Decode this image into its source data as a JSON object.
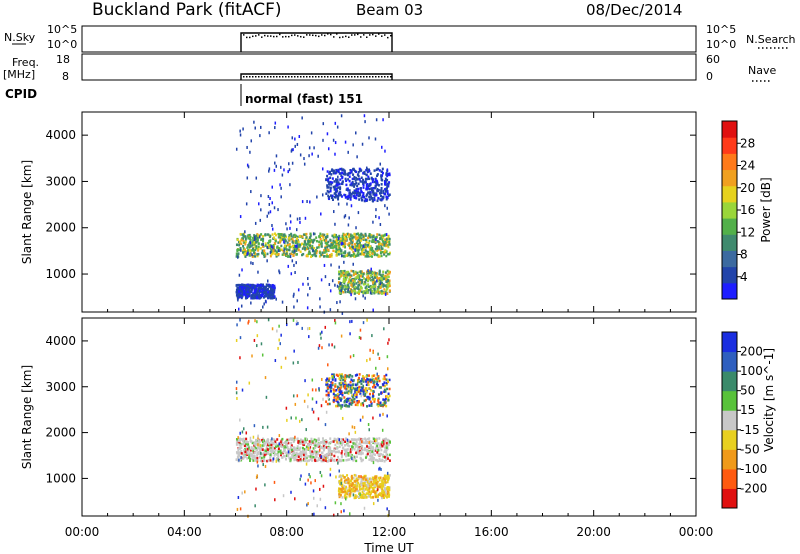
{
  "header": {
    "station": "Buckland Park (fitACF)",
    "beam": "Beam 03",
    "date": "08/Dec/2014"
  },
  "noise_panel": {
    "left_label": "N.Sky",
    "right_label": "N.Search",
    "ticks_left": [
      "10^5",
      "10^0"
    ],
    "ticks_right": [
      "10^5",
      "10^0"
    ]
  },
  "freq_panel": {
    "left_label": "Freq.",
    "left_unit": "[MHz]",
    "ticks_left": [
      "18",
      "8"
    ],
    "right_label": "Nave",
    "ticks_right": [
      "60",
      "0"
    ]
  },
  "cpid": {
    "label": "CPID",
    "mode": "normal (fast) 151"
  },
  "colors": {
    "power": [
      "#1e1eff",
      "#2244aa",
      "#3c6aa0",
      "#3f8a6e",
      "#52b04a",
      "#9ad63a",
      "#e6d21e",
      "#f0a020",
      "#ff7a1a",
      "#ff3a1a",
      "#e01010"
    ],
    "velocity": [
      "#1a2ee0",
      "#2f5fbf",
      "#3a8a6a",
      "#58c23a",
      "#c8c8c8",
      "#e8d020",
      "#f09a1a",
      "#ff5a10",
      "#e01010"
    ]
  },
  "chart_data": [
    {
      "type": "heatmap",
      "title": "Power",
      "xlabel": "",
      "ylabel": "Slant Range [km]",
      "ylim": [
        180,
        4500
      ],
      "yticks": [
        "1000",
        "2000",
        "3000",
        "4000"
      ],
      "colorbar": {
        "label": "Power [dB]",
        "ticks": [
          "4",
          "8",
          "12",
          "16",
          "20",
          "24",
          "28"
        ],
        "range": [
          0,
          32
        ]
      },
      "echo_regions": [
        {
          "t_start": "06:00",
          "t_end": "12:00",
          "range_km": [
            1400,
            1900
          ],
          "power_db": [
            8,
            24
          ]
        },
        {
          "t_start": "09:30",
          "t_end": "12:00",
          "range_km": [
            2600,
            3300
          ],
          "power_db": [
            4,
            12
          ]
        },
        {
          "t_start": "10:00",
          "t_end": "12:00",
          "range_km": [
            600,
            1100
          ],
          "power_db": [
            6,
            20
          ]
        },
        {
          "t_start": "06:00",
          "t_end": "07:30",
          "range_km": [
            500,
            800
          ],
          "power_db": [
            4,
            10
          ]
        }
      ]
    },
    {
      "type": "heatmap",
      "title": "Velocity",
      "xlabel": "Time UT",
      "ylabel": "Slant Range [km]",
      "ylim": [
        180,
        4500
      ],
      "yticks": [
        "1000",
        "2000",
        "3000",
        "4000"
      ],
      "xticks": [
        "00:00",
        "04:00",
        "08:00",
        "12:00",
        "16:00",
        "20:00",
        "00:00"
      ],
      "colorbar": {
        "label": "Velocity [m s^-1]",
        "ticks": [
          "200",
          "100",
          "50",
          "15",
          "-15",
          "-50",
          "-100",
          "-200"
        ]
      },
      "echo_regions": [
        {
          "t_start": "06:00",
          "t_end": "12:00",
          "range_km": [
            1400,
            1900
          ],
          "velocity": [
            -15,
            15
          ]
        },
        {
          "t_start": "09:30",
          "t_end": "12:00",
          "range_km": [
            2600,
            3300
          ],
          "velocity": [
            -100,
            200
          ]
        },
        {
          "t_start": "10:00",
          "t_end": "12:00",
          "range_km": [
            600,
            1100
          ],
          "velocity": [
            -100,
            -15
          ]
        }
      ]
    }
  ]
}
